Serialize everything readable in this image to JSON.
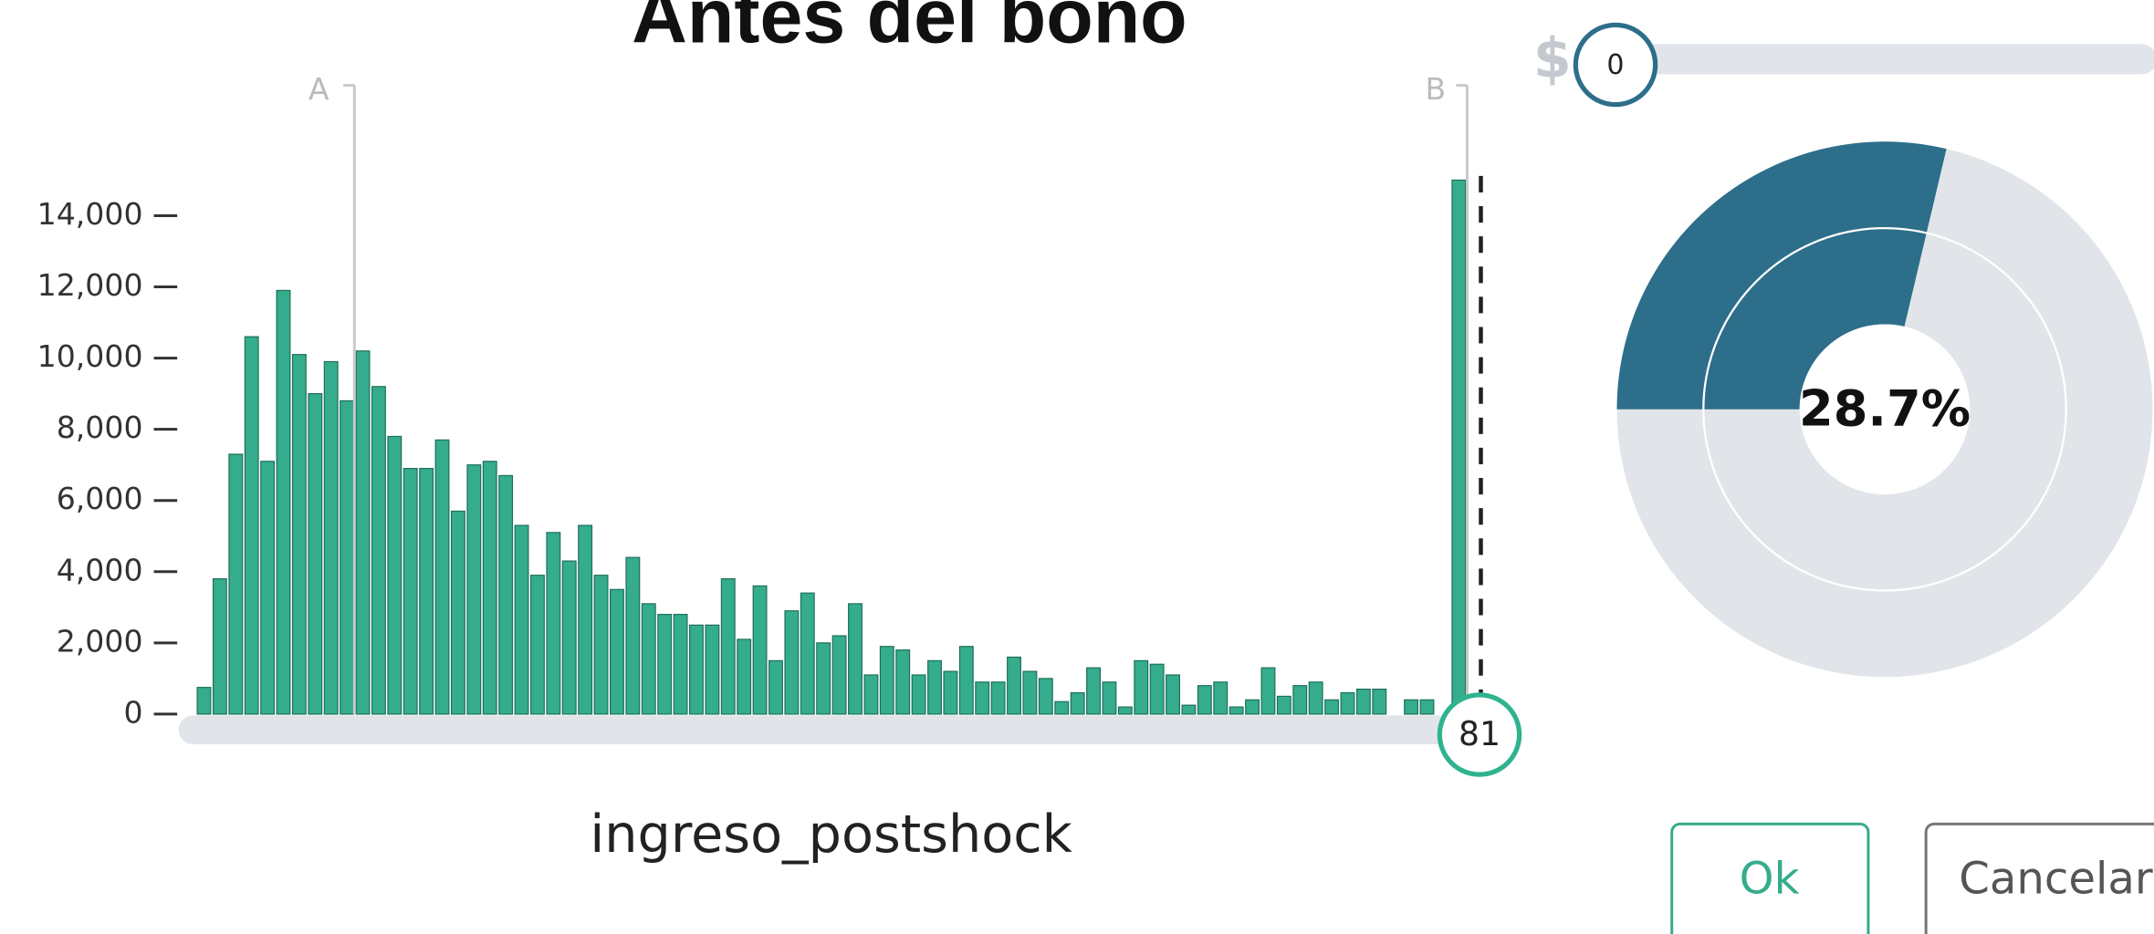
{
  "chart_data": {
    "type": "bar",
    "title": "Antes del bono",
    "x_label": "ingreso_postshock",
    "color": "#35ac8c",
    "values": [
      750,
      3800,
      7300,
      10600,
      7100,
      11900,
      10100,
      9000,
      9900,
      8800,
      10200,
      9200,
      7800,
      6900,
      6900,
      7700,
      5700,
      7000,
      7100,
      6700,
      5300,
      3900,
      5100,
      4300,
      5300,
      3900,
      3500,
      4400,
      3100,
      2800,
      2800,
      2500,
      2500,
      3800,
      2100,
      3600,
      1500,
      2900,
      3400,
      2000,
      2200,
      3100,
      1100,
      1900,
      1800,
      1100,
      1500,
      1200,
      1900,
      900,
      900,
      1600,
      1200,
      1000,
      350,
      600,
      1300,
      900,
      200,
      1500,
      1400,
      1100,
      250,
      800,
      900,
      200,
      400,
      1300,
      500,
      800,
      900,
      400,
      600,
      700,
      700,
      0,
      400,
      400,
      0,
      15000
    ],
    "ylim": [
      0,
      15000
    ],
    "yticks": [
      0,
      {
        "value": 2000,
        "label": "2,000"
      },
      {
        "value": 4000,
        "label": "4,000"
      },
      {
        "value": 6000,
        "label": "6,000"
      },
      {
        "value": 8000,
        "label": "8,000"
      },
      {
        "value": 10000,
        "label": "10,000"
      },
      {
        "value": 12000,
        "label": "12,000"
      },
      {
        "value": 14000,
        "label": "14,000"
      }
    ],
    "markers": [
      "A",
      "B"
    ],
    "slider_value": 81
  },
  "budget": {
    "currency": "$",
    "value": 0
  },
  "donut": {
    "value": 28.7,
    "value_label": "28.7%"
  },
  "buttons": {
    "ok": "Ok",
    "cancel": "Cancelar"
  }
}
